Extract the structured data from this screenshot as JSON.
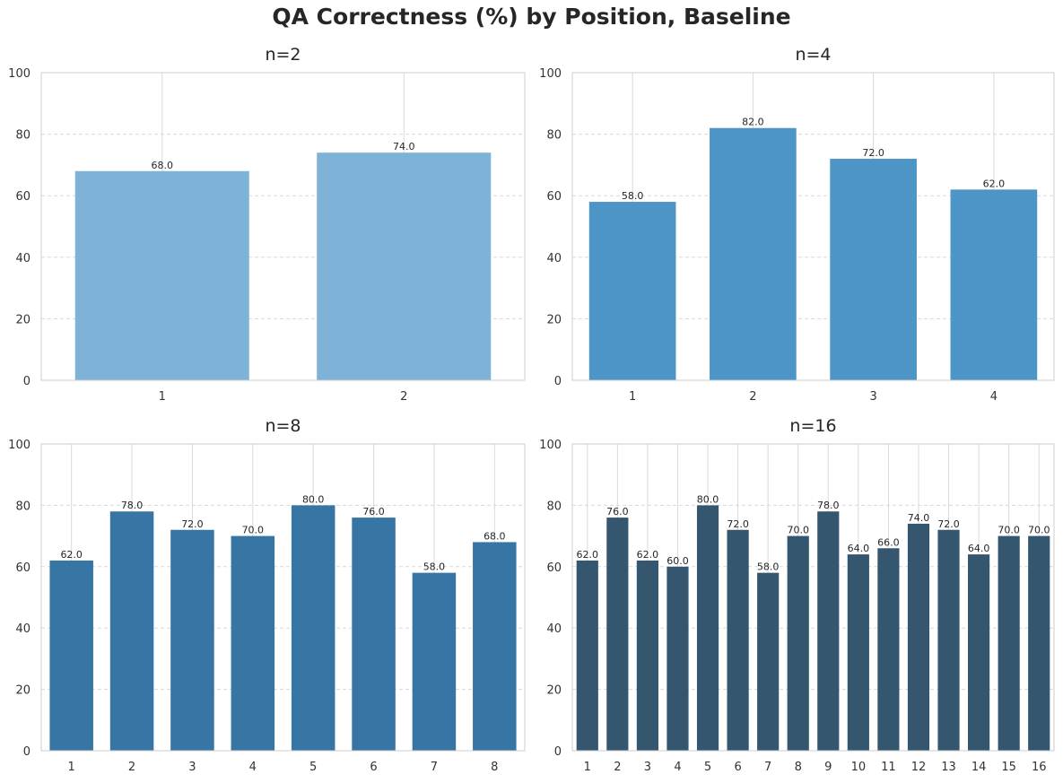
{
  "title": "QA Correctness (%) by Position, Baseline",
  "chart_data": [
    {
      "type": "bar",
      "title": "n=2",
      "categories": [
        "1",
        "2"
      ],
      "values": [
        68.0,
        74.0
      ],
      "value_labels": [
        "68.0",
        "74.0"
      ],
      "ylim": [
        0,
        100
      ],
      "yticks": [
        "0",
        "20",
        "40",
        "60",
        "80",
        "100"
      ],
      "grid": true,
      "color": "#7fb2d7"
    },
    {
      "type": "bar",
      "title": "n=4",
      "categories": [
        "1",
        "2",
        "3",
        "4"
      ],
      "values": [
        58.0,
        82.0,
        72.0,
        62.0
      ],
      "value_labels": [
        "58.0",
        "82.0",
        "72.0",
        "62.0"
      ],
      "ylim": [
        0,
        100
      ],
      "yticks": [
        "0",
        "20",
        "40",
        "60",
        "80",
        "100"
      ],
      "grid": true,
      "color": "#4e95c7"
    },
    {
      "type": "bar",
      "title": "n=8",
      "categories": [
        "1",
        "2",
        "3",
        "4",
        "5",
        "6",
        "7",
        "8"
      ],
      "values": [
        62.0,
        78.0,
        72.0,
        70.0,
        80.0,
        76.0,
        58.0,
        68.0
      ],
      "value_labels": [
        "62.0",
        "78.0",
        "72.0",
        "70.0",
        "80.0",
        "76.0",
        "58.0",
        "68.0"
      ],
      "ylim": [
        0,
        100
      ],
      "yticks": [
        "0",
        "20",
        "40",
        "60",
        "80",
        "100"
      ],
      "grid": true,
      "color": "#3775a4"
    },
    {
      "type": "bar",
      "title": "n=16",
      "categories": [
        "1",
        "2",
        "3",
        "4",
        "5",
        "6",
        "7",
        "8",
        "9",
        "10",
        "11",
        "12",
        "13",
        "14",
        "15",
        "16"
      ],
      "values": [
        62.0,
        76.0,
        62.0,
        60.0,
        80.0,
        72.0,
        58.0,
        70.0,
        78.0,
        64.0,
        66.0,
        74.0,
        72.0,
        64.0,
        70.0,
        70.0
      ],
      "value_labels": [
        "62.0",
        "76.0",
        "62.0",
        "60.0",
        "80.0",
        "72.0",
        "58.0",
        "70.0",
        "78.0",
        "64.0",
        "66.0",
        "74.0",
        "72.0",
        "64.0",
        "70.0",
        "70.0"
      ],
      "ylim": [
        0,
        100
      ],
      "yticks": [
        "0",
        "20",
        "40",
        "60",
        "80",
        "100"
      ],
      "grid": true,
      "color": "#34566e"
    }
  ]
}
